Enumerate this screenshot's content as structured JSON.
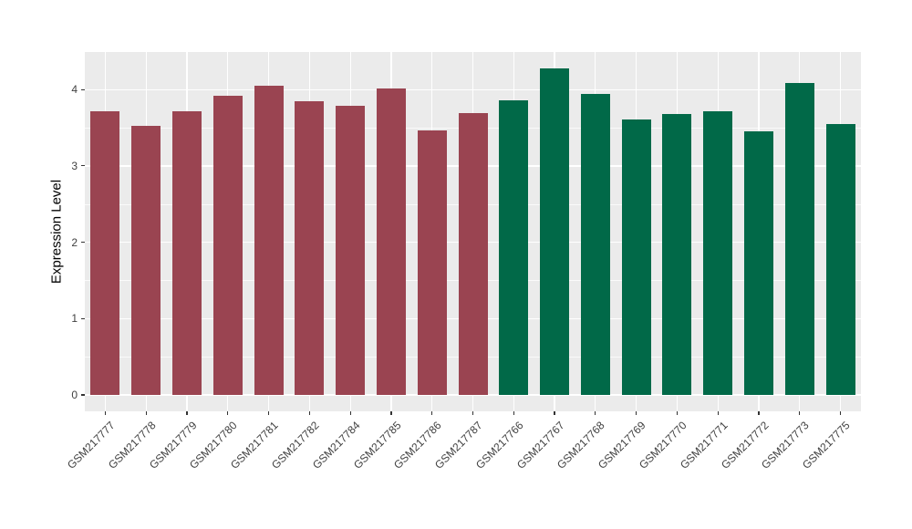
{
  "chart_data": {
    "type": "bar",
    "title": "",
    "xlabel": "",
    "ylabel": "Expression Level",
    "ylim": [
      0,
      4.49
    ],
    "yticks": [
      0,
      1,
      2,
      3,
      4
    ],
    "grid": "horizontal major+minor white gridlines, vertical white gridline at each category center, drawn behind bars",
    "legend_position": "none",
    "panel_background": "#EBEBEB",
    "categories": [
      "GSM217777",
      "GSM217778",
      "GSM217779",
      "GSM217780",
      "GSM217781",
      "GSM217782",
      "GSM217784",
      "GSM217785",
      "GSM217786",
      "GSM217787",
      "GSM217766",
      "GSM217767",
      "GSM217768",
      "GSM217769",
      "GSM217770",
      "GSM217771",
      "GSM217772",
      "GSM217773",
      "GSM217775"
    ],
    "values": [
      3.72,
      3.53,
      3.71,
      3.92,
      4.05,
      3.85,
      3.79,
      4.01,
      3.46,
      3.69,
      3.86,
      4.28,
      3.94,
      3.61,
      3.68,
      3.72,
      3.45,
      4.09,
      3.55
    ],
    "bar_colors": [
      "#9A4451",
      "#9A4451",
      "#9A4451",
      "#9A4451",
      "#9A4451",
      "#9A4451",
      "#9A4451",
      "#9A4451",
      "#9A4451",
      "#9A4451",
      "#016948",
      "#016948",
      "#016948",
      "#016948",
      "#016948",
      "#016948",
      "#016948",
      "#016948",
      "#016948"
    ],
    "group_colors": {
      "group1": "#9A4451",
      "group2": "#016948"
    }
  },
  "style": {
    "figure_background": "#FFFFFF",
    "gridline_color": "#FFFFFF",
    "tick_text_color": "#404040",
    "axis_title_color": "#000000",
    "tick_mark_color": "#333333"
  }
}
